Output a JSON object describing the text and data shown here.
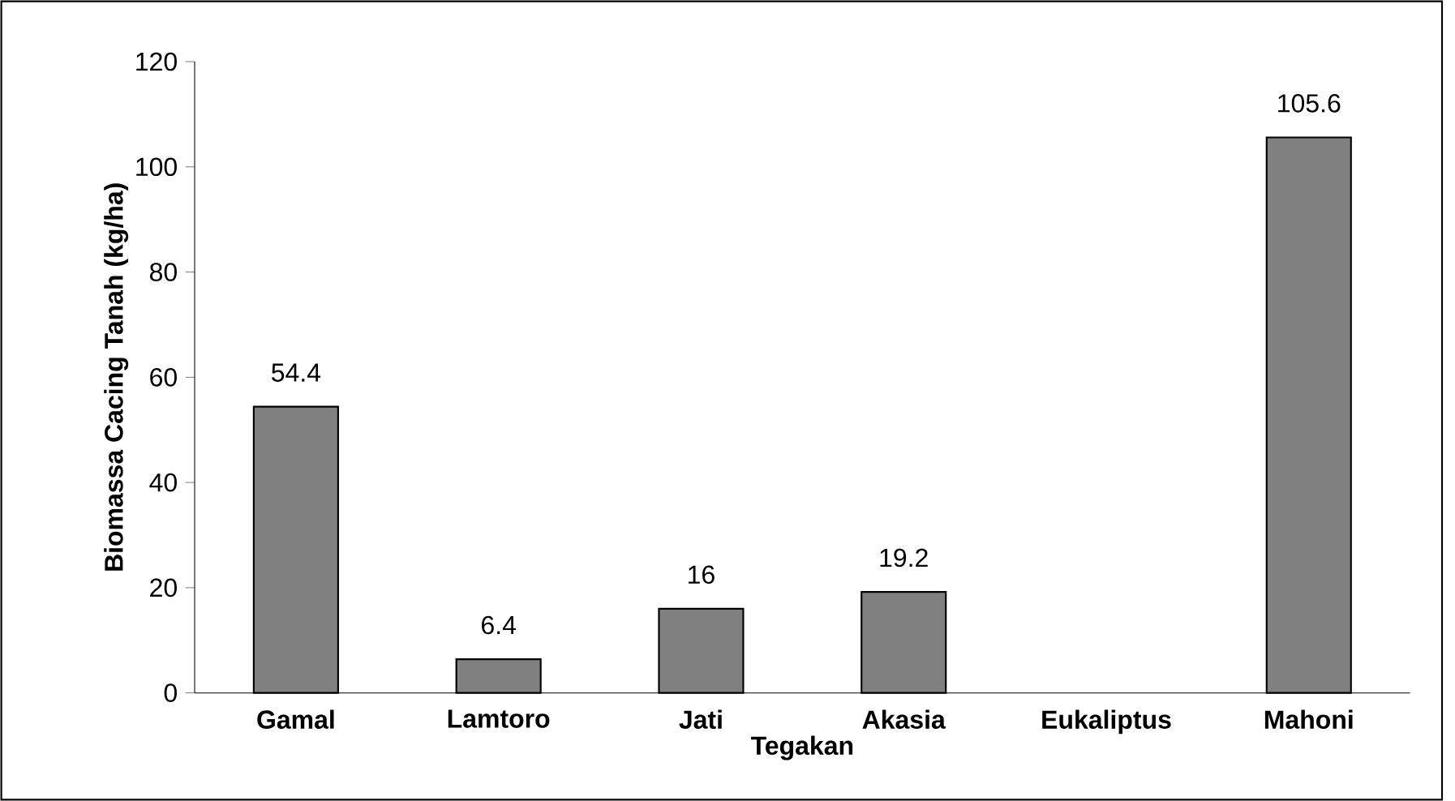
{
  "chart_data": {
    "type": "bar",
    "xlabel": "Tegakan",
    "ylabel": "Biomassa Cacing Tanah (kg/ha)",
    "categories": [
      "Gamal",
      "Lamtoro",
      "Jati",
      "Akasia",
      "Eukaliptus",
      "Mahoni"
    ],
    "values": [
      54.4,
      6.4,
      16,
      19.2,
      null,
      105.6
    ],
    "value_labels": [
      "54.4",
      "6.4",
      "16",
      "19.2",
      null,
      "105.6"
    ],
    "color": "#808080",
    "ylim": [
      0,
      120
    ],
    "yticks": [
      0,
      20,
      40,
      60,
      80,
      100,
      120
    ],
    "grid": false
  }
}
